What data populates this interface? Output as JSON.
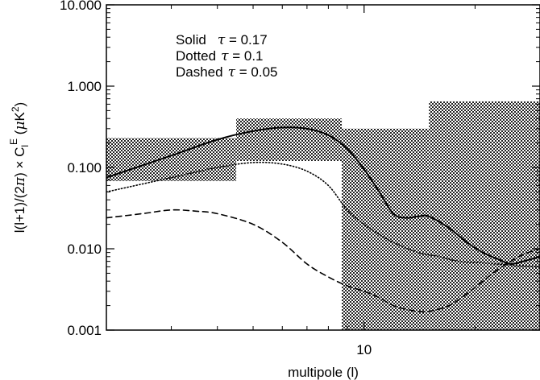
{
  "chart_data": {
    "type": "line",
    "title": "",
    "xlabel": "multipole (l)",
    "ylabel_parts": {
      "main": "l(l+1)/(2",
      "pi": "π",
      "mid": ") × C",
      "sub": "l",
      "sup": "E",
      "unit_open": " (",
      "mu": "μ",
      "unit_k": "K",
      "unit_sq": "2",
      "unit_close": ")"
    },
    "x_scale": "log",
    "y_scale": "log",
    "xlim": [
      2,
      30
    ],
    "ylim": [
      0.001,
      10
    ],
    "x_ticks": [
      {
        "value": 10,
        "label": "10"
      }
    ],
    "y_ticks": [
      {
        "value": 0.001,
        "label": "0.001"
      },
      {
        "value": 0.01,
        "label": "0.010"
      },
      {
        "value": 0.1,
        "label": "0.100"
      },
      {
        "value": 1,
        "label": "1.000"
      },
      {
        "value": 10,
        "label": "10.000"
      }
    ],
    "legend": [
      {
        "style": "Solid",
        "param": "τ",
        "text": " = 0.17"
      },
      {
        "style": "Dotted",
        "param": "τ",
        "text": " = 0.1"
      },
      {
        "style": "Dashed",
        "param": "τ",
        "text": " = 0.05"
      }
    ],
    "legend_position": "top-left",
    "bands": [
      {
        "x": [
          2,
          4.5
        ],
        "y": [
          0.068,
          0.23
        ]
      },
      {
        "x": [
          4.5,
          8.7
        ],
        "y": [
          0.12,
          0.4
        ]
      },
      {
        "x": [
          8.7,
          15
        ],
        "y": [
          0.001,
          0.3
        ]
      },
      {
        "x": [
          15,
          30
        ],
        "y": [
          0.001,
          0.65
        ]
      }
    ],
    "series": [
      {
        "dash": "solid",
        "x": [
          2,
          3,
          4,
          5,
          6,
          7,
          8,
          9,
          10,
          11,
          12,
          13,
          14,
          15,
          17,
          19,
          21,
          23,
          25,
          27,
          30
        ],
        "y": [
          0.075,
          0.14,
          0.22,
          0.28,
          0.31,
          0.3,
          0.25,
          0.17,
          0.095,
          0.05,
          0.027,
          0.024,
          0.025,
          0.025,
          0.018,
          0.012,
          0.009,
          0.0075,
          0.0065,
          0.007,
          0.008
        ]
      },
      {
        "dash": "dotted",
        "x": [
          2,
          3,
          4,
          5,
          6,
          7,
          8,
          9,
          10,
          11,
          12,
          14,
          16,
          18,
          20,
          22,
          24,
          26,
          28,
          30
        ],
        "y": [
          0.05,
          0.075,
          0.1,
          0.115,
          0.11,
          0.09,
          0.06,
          0.03,
          0.02,
          0.015,
          0.012,
          0.009,
          0.008,
          0.007,
          0.0068,
          0.0066,
          0.0064,
          0.0062,
          0.0061,
          0.006
        ]
      },
      {
        "dash": "dashed",
        "x": [
          2,
          2.5,
          3,
          3.5,
          4,
          5,
          6,
          7,
          8,
          9,
          10,
          11,
          12,
          13,
          14,
          15,
          17,
          19,
          21,
          23,
          25,
          27,
          30
        ],
        "y": [
          0.024,
          0.027,
          0.03,
          0.029,
          0.027,
          0.02,
          0.012,
          0.0065,
          0.0045,
          0.0035,
          0.003,
          0.0025,
          0.002,
          0.0018,
          0.0017,
          0.0017,
          0.002,
          0.0028,
          0.004,
          0.0055,
          0.007,
          0.0085,
          0.01
        ]
      }
    ],
    "grid": false
  }
}
